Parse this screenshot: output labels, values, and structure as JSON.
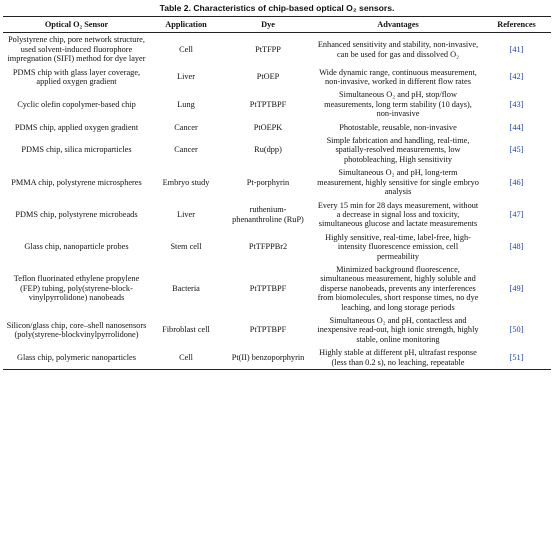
{
  "caption": "Table 2. Characteristics of chip-based optical O₂ sensors.",
  "table": {
    "header": [
      "Optical O₂ Sensor",
      "Application",
      "Dye",
      "Advantages",
      "References"
    ],
    "rows": [
      [
        "Polystyrene chip, pore network structure, used solvent-induced fluorophore impregnation (SIFI) method for dye layer",
        "Cell",
        "PtTFPP",
        "Enhanced sensitivity and stability, non-invasive, can be used for gas and dissolved O₂",
        "[41]"
      ],
      [
        "PDMS chip with glass layer coverage, applied oxygen gradient",
        "Liver",
        "PtOEP",
        "Wide dynamic range, continuous measurement, non-invasive, worked in different flow rates",
        "[42]"
      ],
      [
        "Cyclic olefin copolymer-based chip",
        "Lung",
        "PtTPTBPF",
        "Simultaneous O₂ and pH, stop/flow measurements, long term stability (10 days), non-invasive",
        "[43]"
      ],
      [
        "PDMS chip, applied oxygen gradient",
        "Cancer",
        "PtOEPK",
        "Photostable, reusable, non-invasive",
        "[44]"
      ],
      [
        "PDMS chip, silica microparticles",
        "Cancer",
        "Ru(dpp)",
        "Simple fabrication and handling, real-time, spatially-resolved measurements, low photobleaching, High sensitivity",
        "[45]"
      ],
      [
        "PMMA chip, polystyrene microspheres",
        "Embryo study",
        "Pt-porphyrin",
        "Simultaneous O₂ and pH, long-term measurement, highly sensitive for single embryo analysis",
        "[46]"
      ],
      [
        "PDMS chip, polystyrene microbeads",
        "Liver",
        "ruthenium-phenanthroline (RuP)",
        "Every 15 min for 28 days measurement, without a decrease in signal loss and toxicity, simultaneous glucose and lactate measurements",
        "[47]"
      ],
      [
        "Glass chip, nanoparticle probes",
        "Stem cell",
        "PtTFPPBr2",
        "Highly sensitive, real-time, label-free, high-intensity fluorescence emission, cell permeability",
        "[48]"
      ],
      [
        "Teflon fluorinated ethylene propylene (FEP) tubing, poly(styrene-block-vinylpyrrolidone) nanobeads",
        "Bacteria",
        "PtTPTBPF",
        "Minimized background fluorescence, simultaneous measurement, highly soluble and disperse nanobeads, prevents any interferences from biomolecules, short response times, no dye leaching, and long storage periods",
        "[49]"
      ],
      [
        "Silicon/glass chip, core–shell nanosensors (poly(styrene-blockvinylpyrrolidone)",
        "Fibroblast cell",
        "PtTPTBPF",
        "Simultaneous O₂ and pH, contactless and inexpensive read-out, high ionic strength, highly stable, online monitoring",
        "[50]"
      ],
      [
        "Glass chip, polymeric nanoparticles",
        "Cell",
        "Pt(II) benzoporphyrin",
        "Highly stable at different pH, ultrafast response (less than 0.2 s), no leaching, repeatable",
        "[51]"
      ]
    ]
  }
}
